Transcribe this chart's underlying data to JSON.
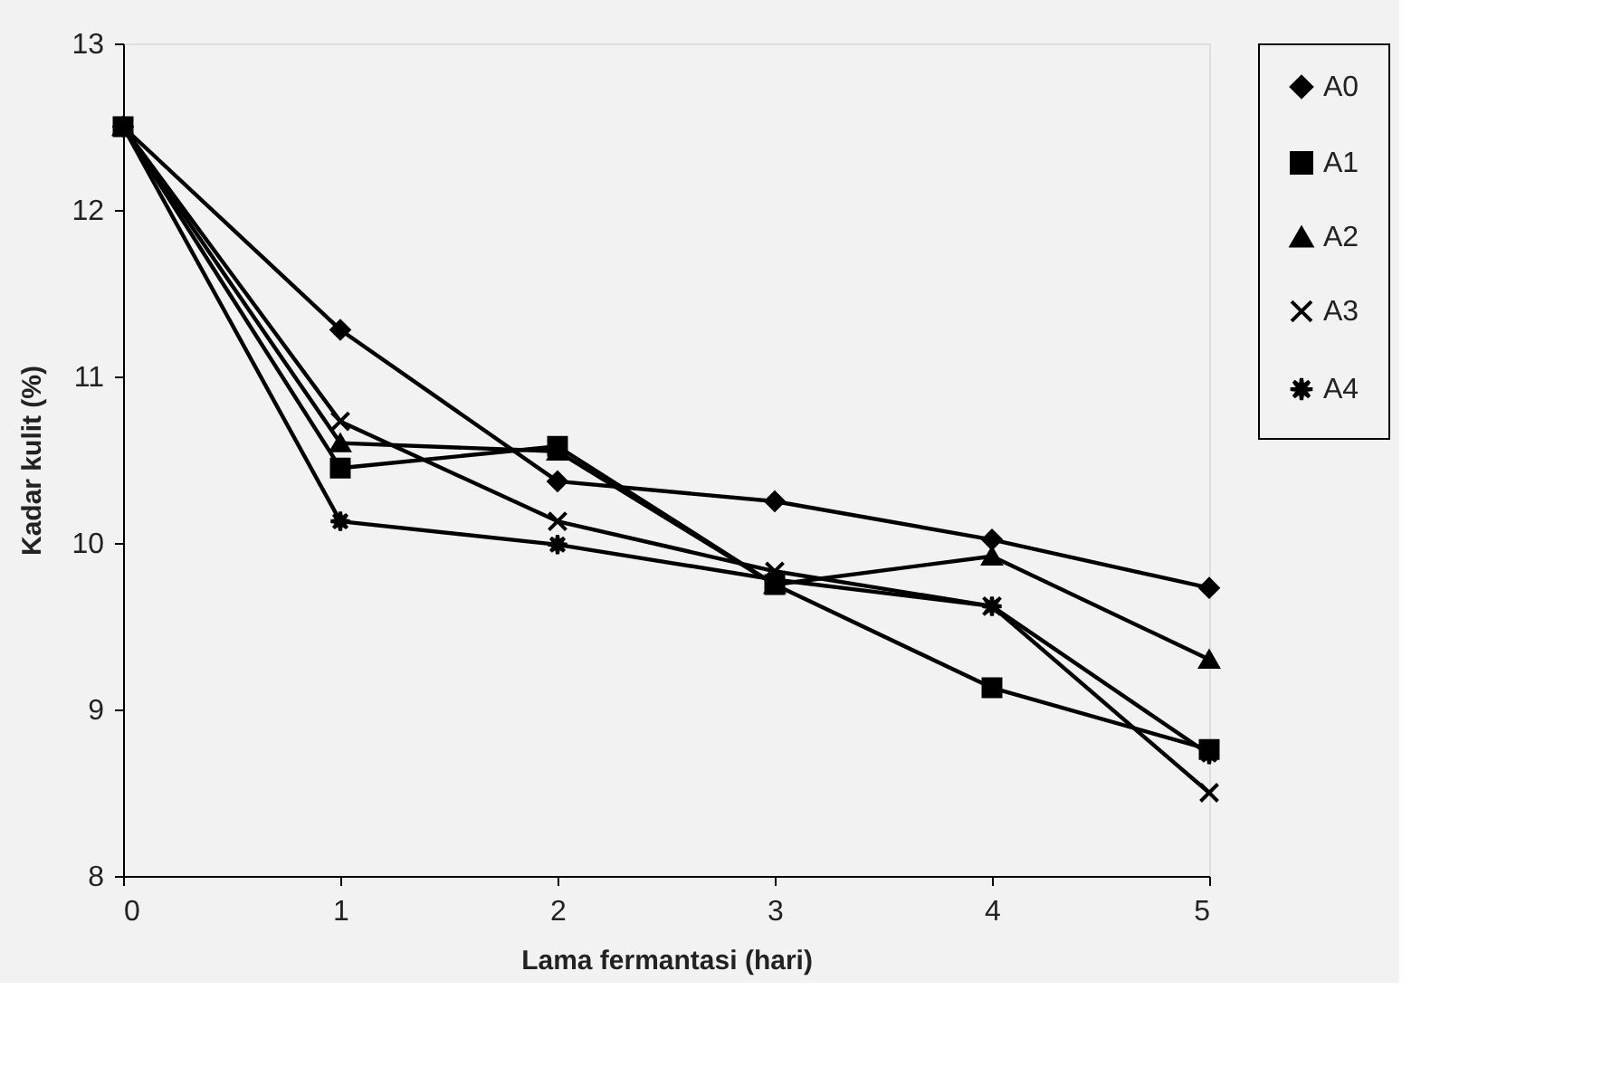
{
  "chart_data": {
    "type": "line",
    "xlabel": "Lama fermantasi (hari)",
    "ylabel": "Kadar kulit (%)",
    "x": [
      0,
      1,
      2,
      3,
      4,
      5
    ],
    "xlim": [
      0,
      5
    ],
    "xticks": [
      0,
      1,
      2,
      3,
      4,
      5
    ],
    "ylim": [
      8,
      13
    ],
    "yticks": [
      8,
      9,
      10,
      11,
      12,
      13
    ],
    "grid": false,
    "legend": "right",
    "line_style": "solid",
    "series": [
      {
        "name": "A0",
        "color": "#000000",
        "marker": "diamond",
        "values": [
          12.5,
          11.28,
          10.37,
          10.25,
          10.02,
          9.73
        ]
      },
      {
        "name": "A1",
        "color": "#000000",
        "marker": "square",
        "values": [
          12.5,
          10.45,
          10.58,
          9.75,
          9.13,
          8.76
        ]
      },
      {
        "name": "A2",
        "color": "#000000",
        "marker": "triangle",
        "values": [
          12.5,
          10.6,
          10.55,
          9.75,
          9.92,
          9.3
        ]
      },
      {
        "name": "A3",
        "color": "#000000",
        "marker": "cross",
        "values": [
          12.5,
          10.73,
          10.13,
          9.83,
          9.62,
          8.5
        ]
      },
      {
        "name": "A4",
        "color": "#000000",
        "marker": "star",
        "values": [
          12.5,
          10.13,
          9.99,
          9.78,
          9.62,
          8.73
        ]
      }
    ]
  }
}
